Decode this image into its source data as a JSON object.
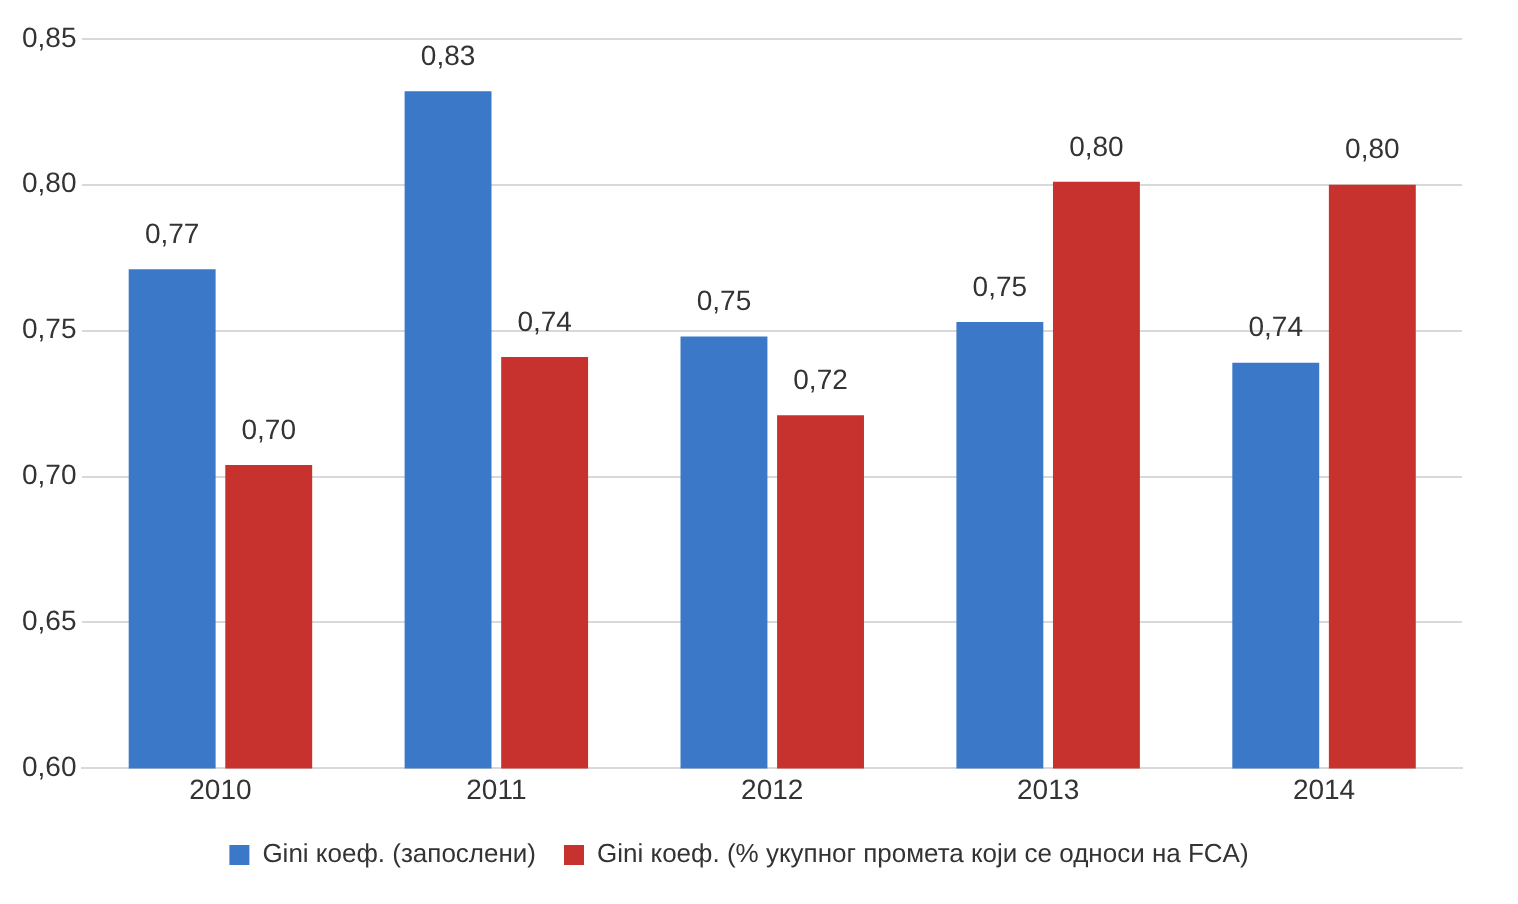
{
  "chart_data": {
    "type": "bar",
    "categories": [
      "2010",
      "2011",
      "2012",
      "2013",
      "2014"
    ],
    "series": [
      {
        "name": "Gini коеф. (запослени)",
        "color": "#3c78c8",
        "values": [
          0.771,
          0.832,
          0.748,
          0.753,
          0.739
        ],
        "value_labels": [
          "0,77",
          "0,83",
          "0,75",
          "0,75",
          "0,74"
        ]
      },
      {
        "name": "Gini коеф. (% укупног промета који се односи на FCA)",
        "color": "#c8322e",
        "values": [
          0.704,
          0.741,
          0.721,
          0.801,
          0.8
        ],
        "value_labels": [
          "0,70",
          "0,74",
          "0,72",
          "0,80",
          "0,80"
        ]
      }
    ],
    "ylim": [
      0.6,
      0.85
    ],
    "yticks": [
      {
        "value": 0.6,
        "label": "0,60"
      },
      {
        "value": 0.65,
        "label": "0,65"
      },
      {
        "value": 0.7,
        "label": "0,70"
      },
      {
        "value": 0.75,
        "label": "0,75"
      },
      {
        "value": 0.8,
        "label": "0,80"
      },
      {
        "value": 0.85,
        "label": "0,85"
      }
    ],
    "grid": "y",
    "legend": "bottom"
  }
}
